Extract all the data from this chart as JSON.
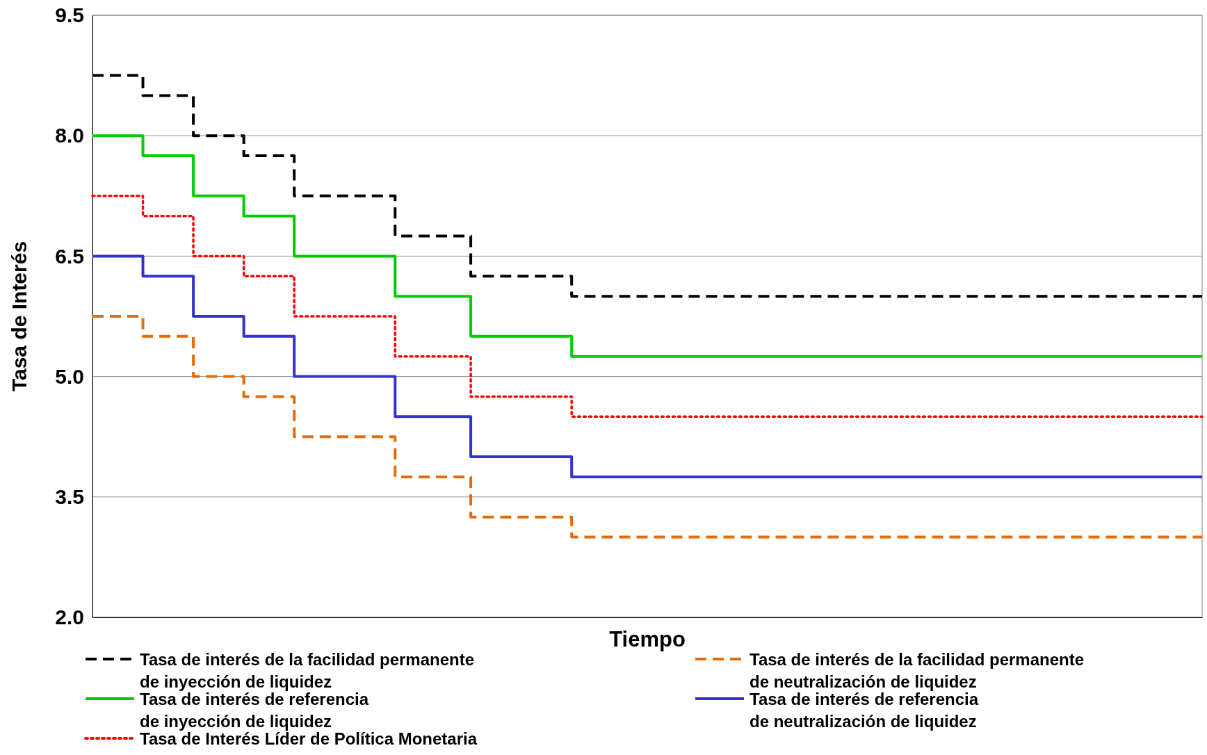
{
  "chart_data": {
    "type": "step",
    "xlabel": "Tiempo",
    "ylabel": "Tasa de Interés",
    "categories": [
      null,
      null,
      null,
      null,
      null,
      null,
      null,
      null,
      null,
      null,
      null,
      null,
      null,
      null,
      null,
      null,
      null,
      null,
      null,
      null,
      null,
      null,
      null,
      null,
      null,
      null,
      null,
      null,
      null,
      null,
      null,
      null,
      null,
      null,
      null,
      null,
      null,
      null,
      null,
      null,
      null,
      null,
      null,
      null,
      null
    ],
    "ylim": [
      2.0,
      9.5
    ],
    "yticks": [
      {
        "value": 2,
        "label": "2.0"
      },
      {
        "value": 3.5,
        "label": "3.5"
      },
      {
        "value": 5,
        "label": "5.0"
      },
      {
        "value": 6.5,
        "label": "6.5"
      },
      {
        "value": 8,
        "label": "8.0"
      },
      {
        "value": 9.5,
        "label": "9.5"
      }
    ],
    "grid": "y",
    "legend": "bottom",
    "tick_labels": "y",
    "series": [
      {
        "name": "Tasa de interés de la facilidad permanente\nde inyección de liquidez",
        "color": "#000000",
        "line_style": "dashed",
        "values": [
          8.75,
          8.75,
          8.5,
          8.5,
          8.0,
          8.0,
          7.75,
          7.75,
          7.25,
          7.25,
          7.25,
          7.25,
          6.75,
          6.75,
          6.75,
          6.25,
          6.25,
          6.25,
          6.25,
          6.0,
          6.0,
          6.0,
          6.0,
          6.0,
          6.0,
          6.0,
          6.0,
          6.0,
          6.0,
          6.0,
          6.0,
          6.0,
          6.0,
          6.0,
          6.0,
          6.0,
          6.0,
          6.0,
          6.0,
          6.0,
          6.0,
          6.0,
          6.0,
          6.0,
          6.0
        ]
      },
      {
        "name": "Tasa de interés de la facilidad permanente\nde neutralización de liquidez",
        "color": "#e36c0a",
        "line_style": "dashed",
        "values": [
          5.75,
          5.75,
          5.5,
          5.5,
          5.0,
          5.0,
          4.75,
          4.75,
          4.25,
          4.25,
          4.25,
          4.25,
          3.75,
          3.75,
          3.75,
          3.25,
          3.25,
          3.25,
          3.25,
          3.0,
          3.0,
          3.0,
          3.0,
          3.0,
          3.0,
          3.0,
          3.0,
          3.0,
          3.0,
          3.0,
          3.0,
          3.0,
          3.0,
          3.0,
          3.0,
          3.0,
          3.0,
          3.0,
          3.0,
          3.0,
          3.0,
          3.0,
          3.0,
          3.0,
          3.0
        ]
      },
      {
        "name": "Tasa de interés  de referencia\nde inyección de liquidez",
        "color": "#00cc00",
        "line_style": "solid",
        "values": [
          8.0,
          8.0,
          7.75,
          7.75,
          7.25,
          7.25,
          7.0,
          7.0,
          6.5,
          6.5,
          6.5,
          6.5,
          6.0,
          6.0,
          6.0,
          5.5,
          5.5,
          5.5,
          5.5,
          5.25,
          5.25,
          5.25,
          5.25,
          5.25,
          5.25,
          5.25,
          5.25,
          5.25,
          5.25,
          5.25,
          5.25,
          5.25,
          5.25,
          5.25,
          5.25,
          5.25,
          5.25,
          5.25,
          5.25,
          5.25,
          5.25,
          5.25,
          5.25,
          5.25,
          5.25
        ]
      },
      {
        "name": "Tasa de interés  de referencia\nde neutralización de liquidez",
        "color": "#3333cc",
        "line_style": "solid",
        "values": [
          6.5,
          6.5,
          6.25,
          6.25,
          5.75,
          5.75,
          5.5,
          5.5,
          5.0,
          5.0,
          5.0,
          5.0,
          4.5,
          4.5,
          4.5,
          4.0,
          4.0,
          4.0,
          4.0,
          3.75,
          3.75,
          3.75,
          3.75,
          3.75,
          3.75,
          3.75,
          3.75,
          3.75,
          3.75,
          3.75,
          3.75,
          3.75,
          3.75,
          3.75,
          3.75,
          3.75,
          3.75,
          3.75,
          3.75,
          3.75,
          3.75,
          3.75,
          3.75,
          3.75,
          3.75
        ]
      },
      {
        "name": "Tasa de Interés Líder de Política Monetaria",
        "color": "#ff0000",
        "line_style": "dotted",
        "values": [
          7.25,
          7.25,
          7.0,
          7.0,
          6.5,
          6.5,
          6.25,
          6.25,
          5.75,
          5.75,
          5.75,
          5.75,
          5.25,
          5.25,
          5.25,
          4.75,
          4.75,
          4.75,
          4.75,
          4.5,
          4.5,
          4.5,
          4.5,
          4.5,
          4.5,
          4.5,
          4.5,
          4.5,
          4.5,
          4.5,
          4.5,
          4.5,
          4.5,
          4.5,
          4.5,
          4.5,
          4.5,
          4.5,
          4.5,
          4.5,
          4.5,
          4.5,
          4.5,
          4.5,
          4.5
        ]
      }
    ]
  }
}
